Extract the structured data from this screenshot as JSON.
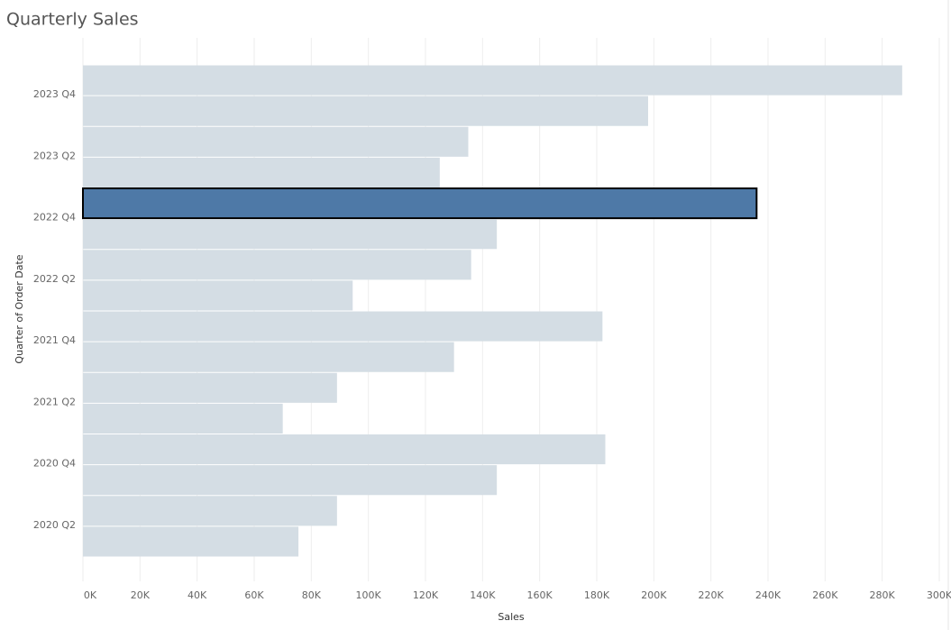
{
  "chart_data": {
    "type": "bar",
    "orientation": "horizontal",
    "title": "Quarterly Sales",
    "x_label": "Sales",
    "y_label": "Quarter of Order Date",
    "categories": [
      "2023 Q4",
      null,
      "2023 Q2",
      null,
      "2022 Q4",
      null,
      "2022 Q2",
      null,
      "2021 Q4",
      null,
      "2021 Q2",
      null,
      "2020 Q4",
      null,
      "2020 Q2",
      null
    ],
    "values": [
      287000,
      198000,
      135000,
      125000,
      236000,
      145000,
      136000,
      94500,
      182000,
      130000,
      89000,
      70000,
      183000,
      145000,
      89000,
      75500
    ],
    "colors": [
      "#d4dde4",
      "#d4dde4",
      "#d4dde4",
      "#d4dde4",
      "#4e79a7",
      "#d4dde4",
      "#d4dde4",
      "#d4dde4",
      "#d4dde4",
      "#d4dde4",
      "#d4dde4",
      "#d4dde4",
      "#d4dde4",
      "#d4dde4",
      "#d4dde4",
      "#d4dde4"
    ],
    "xlim": [
      0,
      300000
    ],
    "xticks": [
      {
        "value": 0,
        "label": "0K"
      },
      {
        "value": 20000,
        "label": "20K"
      },
      {
        "value": 40000,
        "label": "40K"
      },
      {
        "value": 60000,
        "label": "60K"
      },
      {
        "value": 80000,
        "label": "80K"
      },
      {
        "value": 100000,
        "label": "100K"
      },
      {
        "value": 120000,
        "label": "120K"
      },
      {
        "value": 140000,
        "label": "140K"
      },
      {
        "value": 160000,
        "label": "160K"
      },
      {
        "value": 180000,
        "label": "180K"
      },
      {
        "value": 200000,
        "label": "200K"
      },
      {
        "value": 220000,
        "label": "220K"
      },
      {
        "value": 240000,
        "label": "240K"
      },
      {
        "value": 260000,
        "label": "260K"
      },
      {
        "value": 280000,
        "label": "280K"
      },
      {
        "value": 300000,
        "label": "300K"
      }
    ],
    "grid": true
  }
}
